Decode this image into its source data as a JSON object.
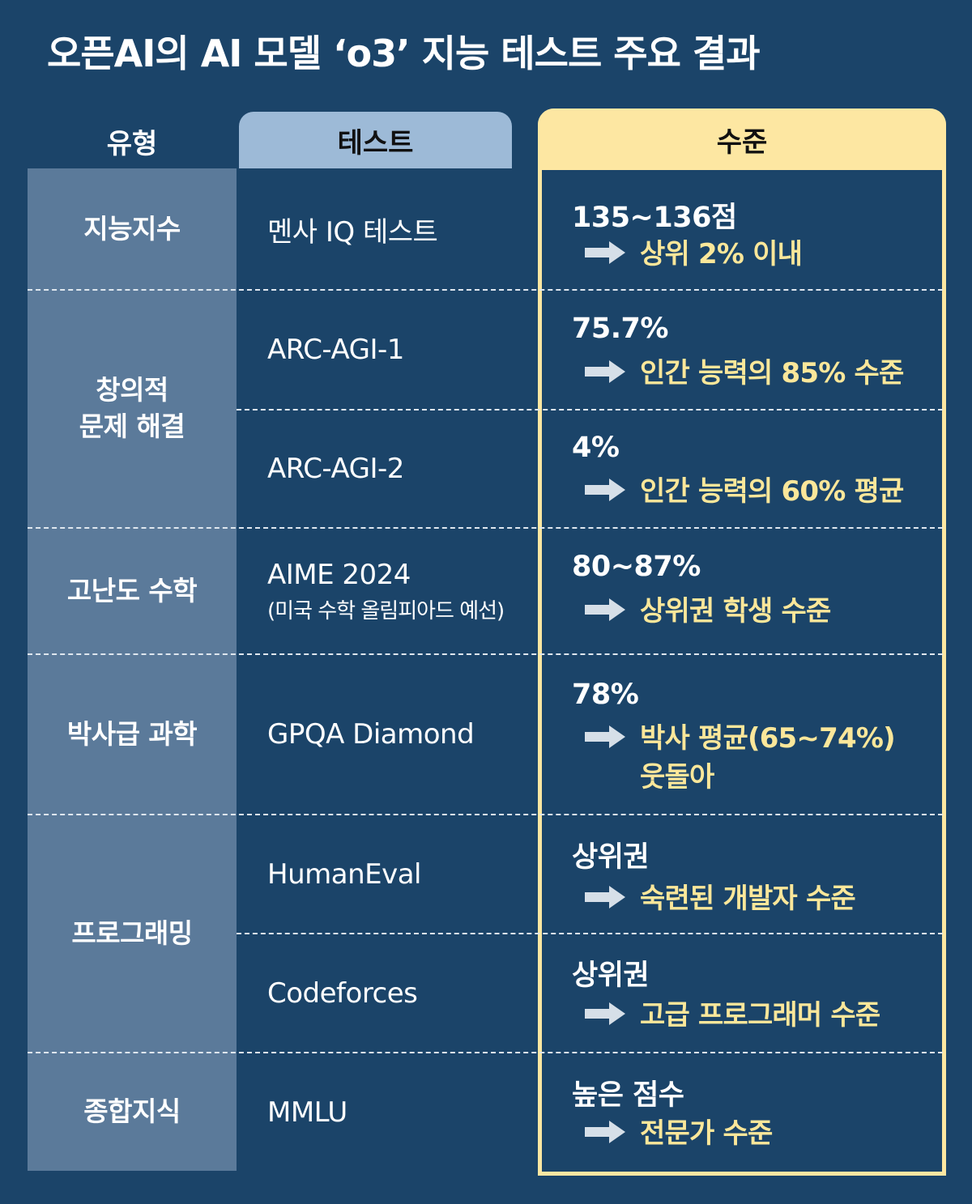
{
  "title": "오픈AI의 AI 모델 ‘o3’ 지능 테스트 주요 결과",
  "headers": {
    "type": "유형",
    "test": "테스트",
    "level": "수준"
  },
  "categories": [
    {
      "label": "지능지수"
    },
    {
      "label": "창의적\n문제 해결"
    },
    {
      "label": "고난도 수학"
    },
    {
      "label": "박사급 과학"
    },
    {
      "label": "프로그래밍"
    },
    {
      "label": "종합지식"
    }
  ],
  "rows": [
    {
      "test": "멘사 IQ 테스트",
      "test_sub": "",
      "level_main": "135~136점",
      "level_detail": "상위 2% 이내"
    },
    {
      "test": "ARC-AGI-1",
      "test_sub": "",
      "level_main": "75.7%",
      "level_detail": "인간 능력의 85% 수준"
    },
    {
      "test": "ARC-AGI-2",
      "test_sub": "",
      "level_main": "4%",
      "level_detail": "인간 능력의 60% 평균"
    },
    {
      "test": "AIME 2024",
      "test_sub": "(미국 수학 올림피아드 예선)",
      "level_main": "80~87%",
      "level_detail": "상위권 학생 수준"
    },
    {
      "test": "GPQA Diamond",
      "test_sub": "",
      "level_main": "78%",
      "level_detail": "박사 평균(65~74%)\n 웃돌아"
    },
    {
      "test": "HumanEval",
      "test_sub": "",
      "level_main": "상위권",
      "level_detail": "숙련된 개발자 수준"
    },
    {
      "test": "Codeforces",
      "test_sub": "",
      "level_main": "상위권",
      "level_detail": "고급 프로그래머 수준"
    },
    {
      "test": "MMLU",
      "test_sub": "",
      "level_main": "높은 점수",
      "level_detail": "전문가 수준"
    }
  ],
  "colors": {
    "background": "#1b4469",
    "type_column": "#5b7a9a",
    "test_header": "#9dbad7",
    "level_accent": "#fde7a2",
    "detail_text": "#fbe79a"
  }
}
